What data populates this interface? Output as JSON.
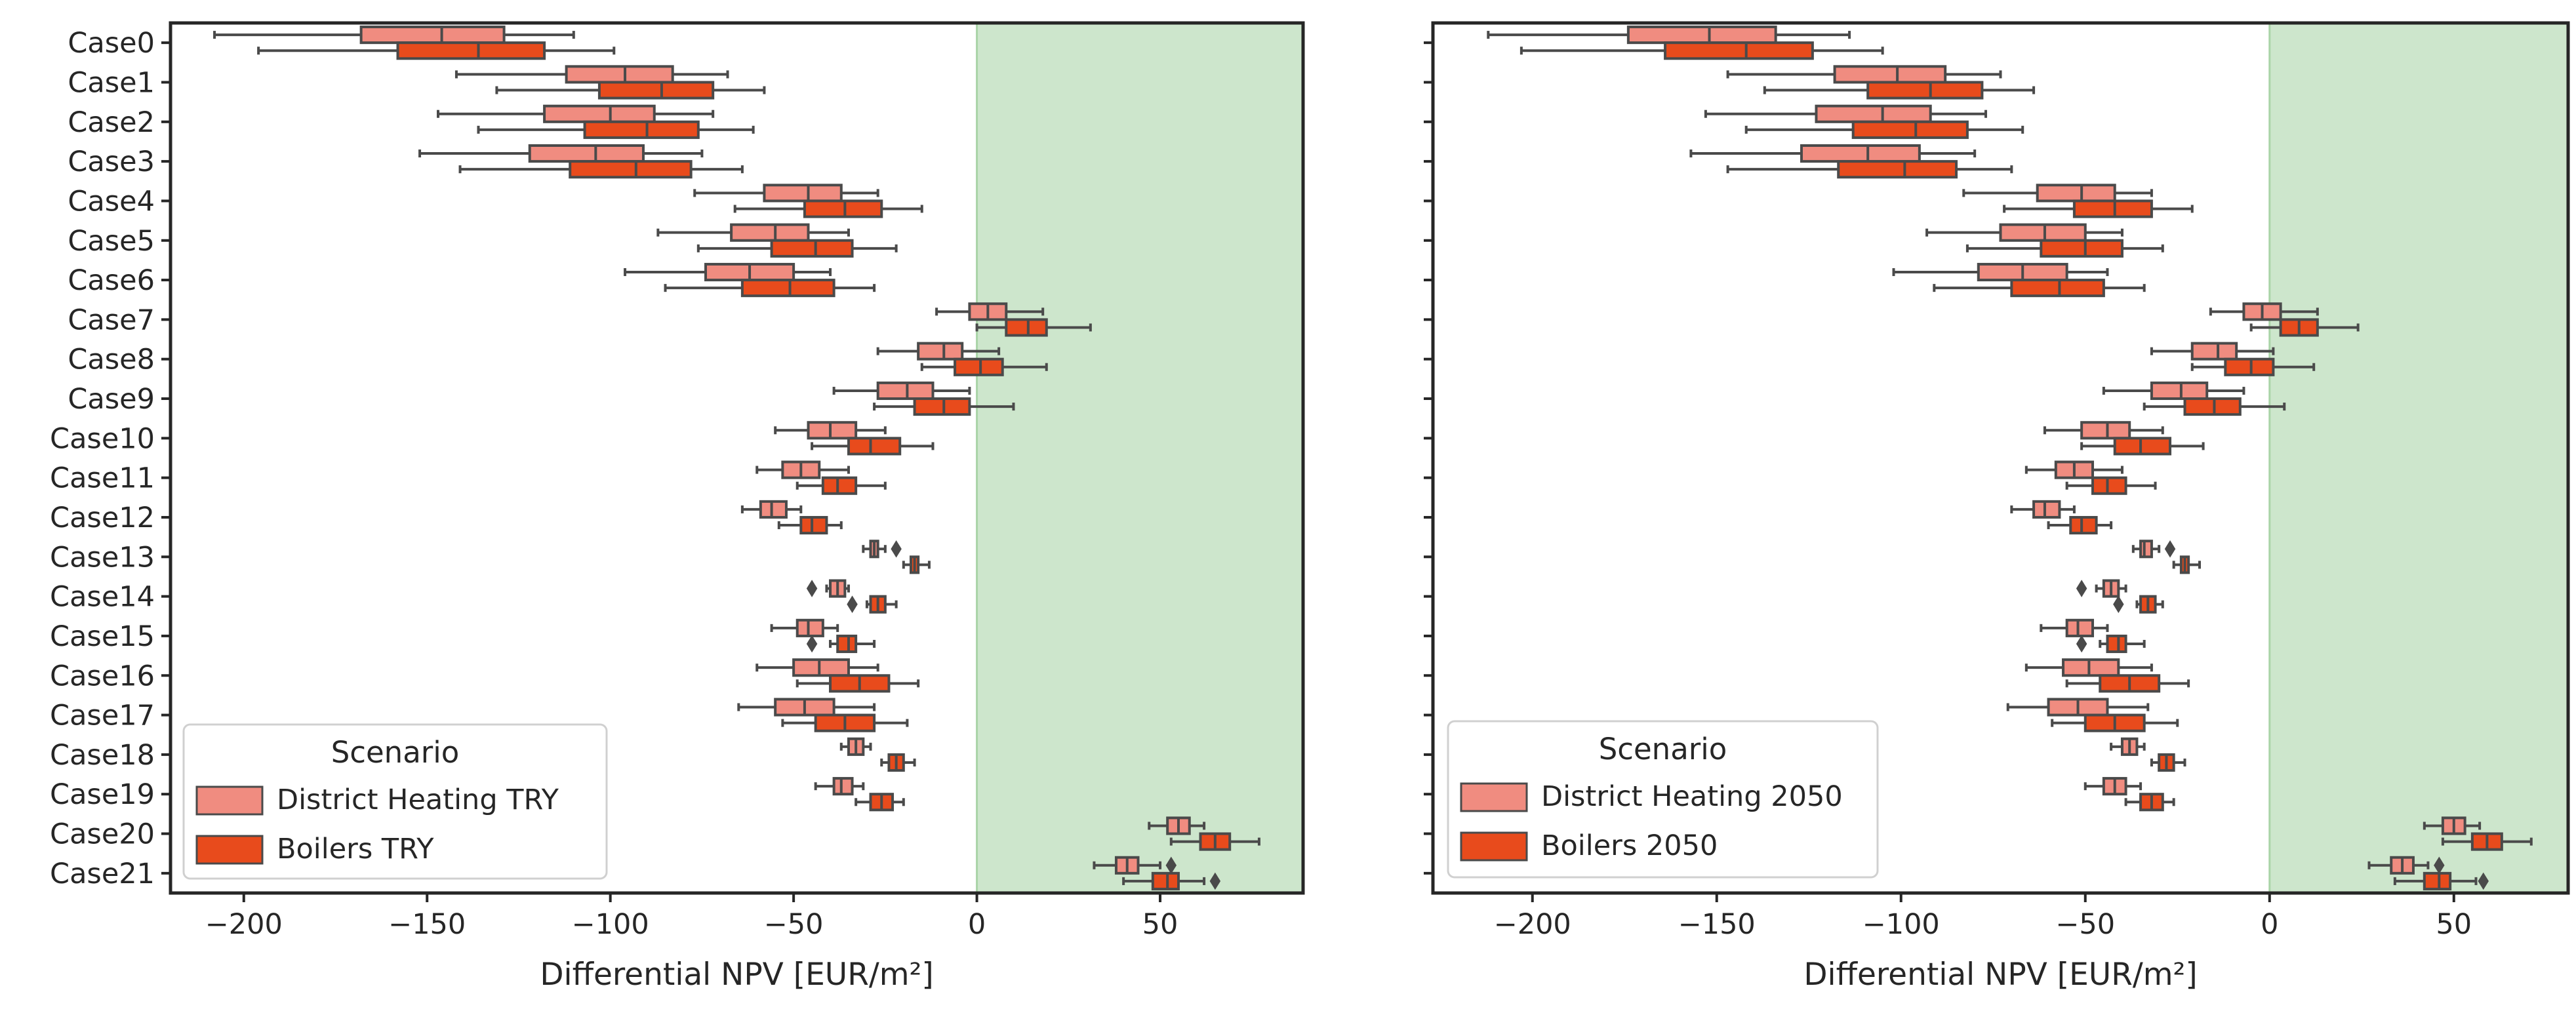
{
  "colors": {
    "district": "#f08c80",
    "boilers": "#e84b1c",
    "shade": "#cde6cc",
    "shade_edge": "#a9d4a7",
    "box_edge": "#4a4a4a",
    "axis": "#262626",
    "text": "#262626"
  },
  "chart_data": [
    {
      "type": "boxplot",
      "orientation": "horizontal",
      "xlabel": "Differential NPV [EUR/m²]",
      "ylabel": "",
      "xlim": [
        -220,
        89
      ],
      "xticks": [
        -200,
        -150,
        -100,
        -50,
        0,
        50
      ],
      "tick_labels": [
        "−200",
        "−150",
        "−100",
        "−50",
        "0",
        "50"
      ],
      "shaded_region": {
        "x0": 0,
        "x1": 89
      },
      "categories": [
        "Case0",
        "Case1",
        "Case2",
        "Case3",
        "Case4",
        "Case5",
        "Case6",
        "Case7",
        "Case8",
        "Case9",
        "Case10",
        "Case11",
        "Case12",
        "Case13",
        "Case14",
        "Case15",
        "Case16",
        "Case17",
        "Case18",
        "Case19",
        "Case20",
        "Case21"
      ],
      "legend": {
        "title": "Scenario",
        "placement": "lower-left"
      },
      "series": [
        {
          "name": "District Heating TRY",
          "color_key": "district",
          "boxes": [
            {
              "min": -208,
              "q1": -168,
              "median": -146,
              "q3": -129,
              "max": -110,
              "outliers": []
            },
            {
              "min": -142,
              "q1": -112,
              "median": -96,
              "q3": -83,
              "max": -68,
              "outliers": []
            },
            {
              "min": -147,
              "q1": -118,
              "median": -100,
              "q3": -88,
              "max": -72,
              "outliers": []
            },
            {
              "min": -152,
              "q1": -122,
              "median": -104,
              "q3": -91,
              "max": -75,
              "outliers": []
            },
            {
              "min": -77,
              "q1": -58,
              "median": -46,
              "q3": -37,
              "max": -27,
              "outliers": []
            },
            {
              "min": -87,
              "q1": -67,
              "median": -55,
              "q3": -46,
              "max": -35,
              "outliers": []
            },
            {
              "min": -96,
              "q1": -74,
              "median": -62,
              "q3": -50,
              "max": -40,
              "outliers": []
            },
            {
              "min": -11,
              "q1": -2,
              "median": 3,
              "q3": 8,
              "max": 18,
              "outliers": []
            },
            {
              "min": -27,
              "q1": -16,
              "median": -9,
              "q3": -4,
              "max": 6,
              "outliers": []
            },
            {
              "min": -39,
              "q1": -27,
              "median": -19,
              "q3": -12,
              "max": -2,
              "outliers": []
            },
            {
              "min": -55,
              "q1": -46,
              "median": -40,
              "q3": -33,
              "max": -25,
              "outliers": []
            },
            {
              "min": -60,
              "q1": -53,
              "median": -48,
              "q3": -43,
              "max": -35,
              "outliers": []
            },
            {
              "min": -64,
              "q1": -59,
              "median": -56,
              "q3": -52,
              "max": -48,
              "outliers": []
            },
            {
              "min": -31,
              "q1": -29,
              "median": -28,
              "q3": -27,
              "max": -25,
              "outliers": [
                -22
              ]
            },
            {
              "min": -41,
              "q1": -40,
              "median": -38,
              "q3": -36,
              "max": -35,
              "outliers": [
                -45
              ]
            },
            {
              "min": -56,
              "q1": -49,
              "median": -46,
              "q3": -42,
              "max": -38,
              "outliers": []
            },
            {
              "min": -60,
              "q1": -50,
              "median": -43,
              "q3": -35,
              "max": -27,
              "outliers": []
            },
            {
              "min": -65,
              "q1": -55,
              "median": -47,
              "q3": -39,
              "max": -28,
              "outliers": []
            },
            {
              "min": -37,
              "q1": -35,
              "median": -33,
              "q3": -31,
              "max": -29,
              "outliers": []
            },
            {
              "min": -44,
              "q1": -39,
              "median": -37,
              "q3": -34,
              "max": -31,
              "outliers": []
            },
            {
              "min": 47,
              "q1": 52,
              "median": 55,
              "q3": 58,
              "max": 62,
              "outliers": []
            },
            {
              "min": 32,
              "q1": 38,
              "median": 41,
              "q3": 44,
              "max": 50,
              "outliers": [
                53
              ]
            }
          ]
        },
        {
          "name": "Boilers TRY",
          "color_key": "boilers",
          "boxes": [
            {
              "min": -196,
              "q1": -158,
              "median": -136,
              "q3": -118,
              "max": -99,
              "outliers": []
            },
            {
              "min": -131,
              "q1": -103,
              "median": -86,
              "q3": -72,
              "max": -58,
              "outliers": []
            },
            {
              "min": -136,
              "q1": -107,
              "median": -90,
              "q3": -76,
              "max": -61,
              "outliers": []
            },
            {
              "min": -141,
              "q1": -111,
              "median": -93,
              "q3": -78,
              "max": -64,
              "outliers": []
            },
            {
              "min": -66,
              "q1": -47,
              "median": -36,
              "q3": -26,
              "max": -15,
              "outliers": []
            },
            {
              "min": -76,
              "q1": -56,
              "median": -44,
              "q3": -34,
              "max": -22,
              "outliers": []
            },
            {
              "min": -85,
              "q1": -64,
              "median": -51,
              "q3": -39,
              "max": -28,
              "outliers": []
            },
            {
              "min": 0,
              "q1": 8,
              "median": 14,
              "q3": 19,
              "max": 31,
              "outliers": []
            },
            {
              "min": -15,
              "q1": -6,
              "median": 1,
              "q3": 7,
              "max": 19,
              "outliers": []
            },
            {
              "min": -28,
              "q1": -17,
              "median": -9,
              "q3": -2,
              "max": 10,
              "outliers": []
            },
            {
              "min": -45,
              "q1": -35,
              "median": -29,
              "q3": -21,
              "max": -12,
              "outliers": []
            },
            {
              "min": -49,
              "q1": -42,
              "median": -38,
              "q3": -33,
              "max": -25,
              "outliers": []
            },
            {
              "min": -54,
              "q1": -48,
              "median": -45,
              "q3": -41,
              "max": -37,
              "outliers": []
            },
            {
              "min": -20,
              "q1": -18,
              "median": -17,
              "q3": -16,
              "max": -13,
              "outliers": []
            },
            {
              "min": -30,
              "q1": -29,
              "median": -27,
              "q3": -25,
              "max": -22,
              "outliers": [
                -34
              ]
            },
            {
              "min": -40,
              "q1": -38,
              "median": -35,
              "q3": -33,
              "max": -28,
              "outliers": [
                -45
              ]
            },
            {
              "min": -49,
              "q1": -40,
              "median": -32,
              "q3": -24,
              "max": -16,
              "outliers": []
            },
            {
              "min": -53,
              "q1": -44,
              "median": -36,
              "q3": -28,
              "max": -19,
              "outliers": []
            },
            {
              "min": -26,
              "q1": -24,
              "median": -22,
              "q3": -20,
              "max": -17,
              "outliers": []
            },
            {
              "min": -33,
              "q1": -29,
              "median": -26,
              "q3": -23,
              "max": -20,
              "outliers": []
            },
            {
              "min": 53,
              "q1": 61,
              "median": 65,
              "q3": 69,
              "max": 77,
              "outliers": []
            },
            {
              "min": 40,
              "q1": 48,
              "median": 52,
              "q3": 55,
              "max": 62,
              "outliers": [
                65
              ]
            }
          ]
        }
      ]
    },
    {
      "type": "boxplot",
      "orientation": "horizontal",
      "xlabel": "Differential NPV [EUR/m²]",
      "ylabel": "",
      "xlim": [
        -227,
        81
      ],
      "xticks": [
        -200,
        -150,
        -100,
        -50,
        0,
        50
      ],
      "tick_labels": [
        "−200",
        "−150",
        "−100",
        "−50",
        "0",
        "50"
      ],
      "shaded_region": {
        "x0": 0,
        "x1": 81
      },
      "categories": [
        "Case0",
        "Case1",
        "Case2",
        "Case3",
        "Case4",
        "Case5",
        "Case6",
        "Case7",
        "Case8",
        "Case9",
        "Case10",
        "Case11",
        "Case12",
        "Case13",
        "Case14",
        "Case15",
        "Case16",
        "Case17",
        "Case18",
        "Case19",
        "Case20",
        "Case21"
      ],
      "legend": {
        "title": "Scenario",
        "placement": "lower-left"
      },
      "series": [
        {
          "name": "District Heating 2050",
          "color_key": "district",
          "boxes": [
            {
              "min": -212,
              "q1": -174,
              "median": -152,
              "q3": -134,
              "max": -114,
              "outliers": []
            },
            {
              "min": -147,
              "q1": -118,
              "median": -101,
              "q3": -88,
              "max": -73,
              "outliers": []
            },
            {
              "min": -153,
              "q1": -123,
              "median": -105,
              "q3": -92,
              "max": -77,
              "outliers": []
            },
            {
              "min": -157,
              "q1": -127,
              "median": -109,
              "q3": -95,
              "max": -80,
              "outliers": []
            },
            {
              "min": -83,
              "q1": -63,
              "median": -51,
              "q3": -42,
              "max": -32,
              "outliers": []
            },
            {
              "min": -93,
              "q1": -73,
              "median": -61,
              "q3": -50,
              "max": -40,
              "outliers": []
            },
            {
              "min": -102,
              "q1": -79,
              "median": -67,
              "q3": -55,
              "max": -44,
              "outliers": []
            },
            {
              "min": -16,
              "q1": -7,
              "median": -2,
              "q3": 3,
              "max": 13,
              "outliers": []
            },
            {
              "min": -32,
              "q1": -21,
              "median": -14,
              "q3": -9,
              "max": 1,
              "outliers": []
            },
            {
              "min": -45,
              "q1": -32,
              "median": -24,
              "q3": -17,
              "max": -7,
              "outliers": []
            },
            {
              "min": -61,
              "q1": -51,
              "median": -44,
              "q3": -38,
              "max": -29,
              "outliers": []
            },
            {
              "min": -66,
              "q1": -58,
              "median": -53,
              "q3": -48,
              "max": -40,
              "outliers": []
            },
            {
              "min": -70,
              "q1": -64,
              "median": -61,
              "q3": -57,
              "max": -53,
              "outliers": []
            },
            {
              "min": -37,
              "q1": -35,
              "median": -34,
              "q3": -32,
              "max": -30,
              "outliers": [
                -27
              ]
            },
            {
              "min": -47,
              "q1": -45,
              "median": -43,
              "q3": -41,
              "max": -39,
              "outliers": [
                -51
              ]
            },
            {
              "min": -62,
              "q1": -55,
              "median": -52,
              "q3": -48,
              "max": -44,
              "outliers": []
            },
            {
              "min": -66,
              "q1": -56,
              "median": -49,
              "q3": -41,
              "max": -32,
              "outliers": []
            },
            {
              "min": -71,
              "q1": -60,
              "median": -52,
              "q3": -44,
              "max": -33,
              "outliers": []
            },
            {
              "min": -43,
              "q1": -40,
              "median": -38,
              "q3": -36,
              "max": -34,
              "outliers": []
            },
            {
              "min": -50,
              "q1": -45,
              "median": -42,
              "q3": -39,
              "max": -35,
              "outliers": []
            },
            {
              "min": 42,
              "q1": 47,
              "median": 50,
              "q3": 53,
              "max": 57,
              "outliers": []
            },
            {
              "min": 27,
              "q1": 33,
              "median": 36,
              "q3": 39,
              "max": 43,
              "outliers": [
                46
              ]
            }
          ]
        },
        {
          "name": "Boilers 2050",
          "color_key": "boilers",
          "boxes": [
            {
              "min": -203,
              "q1": -164,
              "median": -142,
              "q3": -124,
              "max": -105,
              "outliers": []
            },
            {
              "min": -137,
              "q1": -109,
              "median": -92,
              "q3": -78,
              "max": -64,
              "outliers": []
            },
            {
              "min": -142,
              "q1": -113,
              "median": -96,
              "q3": -82,
              "max": -67,
              "outliers": []
            },
            {
              "min": -147,
              "q1": -117,
              "median": -99,
              "q3": -85,
              "max": -70,
              "outliers": []
            },
            {
              "min": -72,
              "q1": -53,
              "median": -42,
              "q3": -32,
              "max": -21,
              "outliers": []
            },
            {
              "min": -82,
              "q1": -62,
              "median": -50,
              "q3": -40,
              "max": -29,
              "outliers": []
            },
            {
              "min": -91,
              "q1": -70,
              "median": -57,
              "q3": -45,
              "max": -34,
              "outliers": []
            },
            {
              "min": -5,
              "q1": 3,
              "median": 8,
              "q3": 13,
              "max": 24,
              "outliers": []
            },
            {
              "min": -21,
              "q1": -12,
              "median": -5,
              "q3": 1,
              "max": 12,
              "outliers": []
            },
            {
              "min": -34,
              "q1": -23,
              "median": -15,
              "q3": -8,
              "max": 4,
              "outliers": []
            },
            {
              "min": -51,
              "q1": -42,
              "median": -35,
              "q3": -27,
              "max": -18,
              "outliers": []
            },
            {
              "min": -55,
              "q1": -48,
              "median": -44,
              "q3": -39,
              "max": -31,
              "outliers": []
            },
            {
              "min": -60,
              "q1": -54,
              "median": -51,
              "q3": -47,
              "max": -43,
              "outliers": []
            },
            {
              "min": -26,
              "q1": -24,
              "median": -23,
              "q3": -22,
              "max": -19,
              "outliers": []
            },
            {
              "min": -36,
              "q1": -35,
              "median": -33,
              "q3": -31,
              "max": -29,
              "outliers": [
                -41
              ]
            },
            {
              "min": -46,
              "q1": -44,
              "median": -41,
              "q3": -39,
              "max": -34,
              "outliers": [
                -51
              ]
            },
            {
              "min": -55,
              "q1": -46,
              "median": -38,
              "q3": -30,
              "max": -22,
              "outliers": []
            },
            {
              "min": -59,
              "q1": -50,
              "median": -42,
              "q3": -34,
              "max": -25,
              "outliers": []
            },
            {
              "min": -32,
              "q1": -30,
              "median": -28,
              "q3": -26,
              "max": -23,
              "outliers": []
            },
            {
              "min": -39,
              "q1": -35,
              "median": -32,
              "q3": -29,
              "max": -26,
              "outliers": []
            },
            {
              "min": 47,
              "q1": 55,
              "median": 59,
              "q3": 63,
              "max": 71,
              "outliers": []
            },
            {
              "min": 34,
              "q1": 42,
              "median": 46,
              "q3": 49,
              "max": 56,
              "outliers": [
                58
              ]
            }
          ]
        }
      ]
    }
  ]
}
